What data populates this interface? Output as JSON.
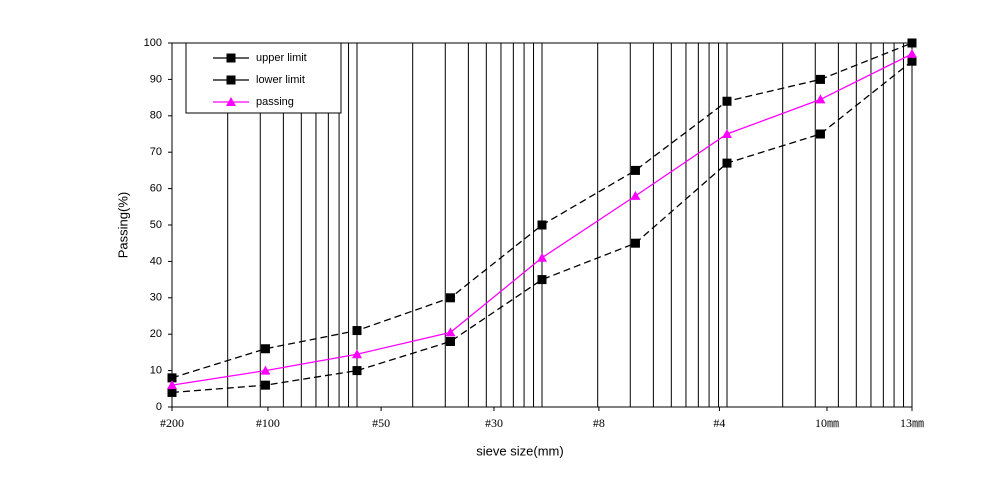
{
  "chart_data": {
    "type": "line",
    "x": [
      1,
      3.2,
      10,
      32,
      100,
      320,
      1000,
      3200,
      10000
    ],
    "xlim": [
      1,
      10000
    ],
    "xscale": "log",
    "xticks": [
      {
        "value": 1,
        "label": "#200"
      },
      {
        "value": 3.3,
        "label": "#100"
      },
      {
        "value": 13.5,
        "label": "#50"
      },
      {
        "value": 55,
        "label": "#30"
      },
      {
        "value": 203,
        "label": "#8"
      },
      {
        "value": 910,
        "label": "#4"
      },
      {
        "value": 3470,
        "label": "10㎜"
      },
      {
        "value": 10000,
        "label": "13㎜"
      }
    ],
    "xgrid": [
      2,
      3,
      4,
      5,
      6,
      7,
      8,
      9,
      10,
      20,
      30,
      40,
      50,
      60,
      70,
      80,
      90,
      100,
      200,
      300,
      400,
      500,
      600,
      700,
      800,
      900,
      1000,
      2000,
      3000,
      4000,
      5000,
      6000,
      7000,
      8000,
      9000
    ],
    "ylim": [
      0,
      100
    ],
    "yticks": [
      0,
      10,
      20,
      30,
      40,
      50,
      60,
      70,
      80,
      90,
      100
    ],
    "xlabel": "sieve size(mm)",
    "ylabel": "Passing(%)",
    "legend": "top-left",
    "series": [
      {
        "name": "upper limit",
        "color": "#000000",
        "marker": "square",
        "dashed": true,
        "values": [
          8,
          16,
          21,
          30,
          50,
          65,
          84,
          90,
          100
        ]
      },
      {
        "name": "lower limit",
        "color": "#000000",
        "marker": "square",
        "dashed": true,
        "values": [
          4,
          6,
          10,
          18,
          35,
          45,
          67,
          75,
          95
        ]
      },
      {
        "name": "passing",
        "color": "#ff00ff",
        "marker": "triangle",
        "dashed": false,
        "values": [
          6,
          10,
          14.5,
          20.5,
          41,
          58,
          75,
          84.5,
          97
        ]
      }
    ]
  }
}
